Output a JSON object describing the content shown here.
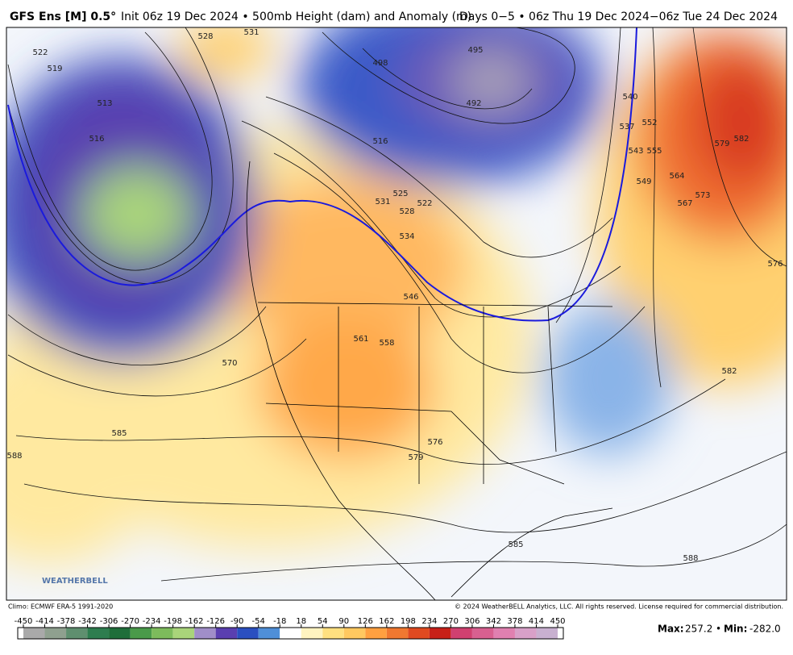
{
  "header": {
    "model": "GFS Ens [M] 0.5°",
    "description": "Init 06z 19 Dec 2024 • 500mb Height (dam) and Anomaly (m)",
    "valid": "Days 0−5 • 06z Thu 19 Dec 2024−06z Tue 24 Dec 2024"
  },
  "map": {
    "contour_labels": [
      "522",
      "519",
      "513",
      "516",
      "528",
      "531",
      "540",
      "537",
      "552",
      "543",
      "555",
      "549",
      "564",
      "567",
      "573",
      "579",
      "582",
      "576",
      "582",
      "570",
      "585",
      "588",
      "561",
      "558",
      "546",
      "534",
      "528",
      "525",
      "531",
      "522",
      "576",
      "579",
      "585",
      "588",
      "492",
      "495",
      "498",
      "516"
    ],
    "logo": "WEATHERBELL"
  },
  "footer": {
    "climo": "Climo: ECMWF ERA-5 1991-2020",
    "copyright": "© 2024 WeatherBELL Analytics, LLC. All rights reserved. License required for commercial distribution."
  },
  "colorbar": {
    "ticks": [
      -450,
      -414,
      -378,
      -342,
      -306,
      -270,
      -234,
      -198,
      -162,
      -126,
      -90,
      -54,
      -18,
      18,
      54,
      90,
      126,
      162,
      198,
      234,
      270,
      306,
      342,
      378,
      414,
      450
    ],
    "colors": [
      "#a9a9a9",
      "#8fa08f",
      "#5f8f6f",
      "#2e7d4f",
      "#1f6e3a",
      "#4a9a4a",
      "#7dbb5c",
      "#a9d47a",
      "#a08ec8",
      "#5a3fb0",
      "#2a4fc0",
      "#4f8fd8",
      "#ffffff",
      "#fff3c0",
      "#ffe080",
      "#ffc860",
      "#ffa040",
      "#f07830",
      "#e04a20",
      "#c82018",
      "#d04070",
      "#d86090",
      "#e080b0",
      "#d8a0c8",
      "#c8b0d0"
    ]
  },
  "stats": {
    "max_label": "Max:",
    "max": 257.2,
    "separator": "•",
    "min_label": "Min:",
    "min": {
      "value": -282,
      "label": "-282.0"
    }
  }
}
